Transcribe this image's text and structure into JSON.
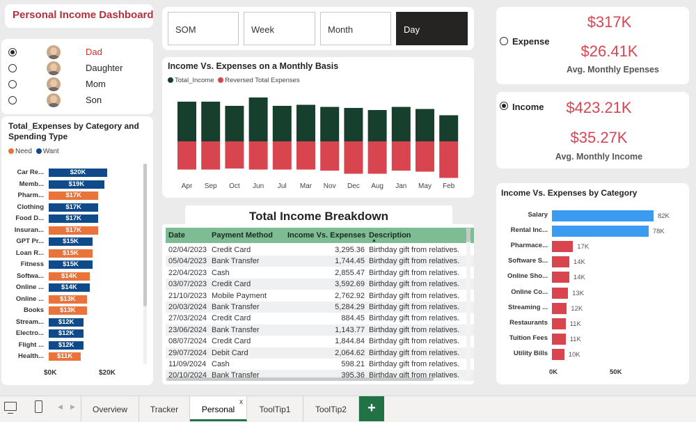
{
  "app": {
    "title": "Personal Income Dashboard"
  },
  "members": [
    {
      "label": "Dad",
      "selected": true
    },
    {
      "label": "Daughter",
      "selected": false
    },
    {
      "label": "Mom",
      "selected": false
    },
    {
      "label": "Son",
      "selected": false
    }
  ],
  "spend_chart": {
    "title_line1": "Total_Expenses by Category and",
    "title_line2": "Spending Type",
    "legend_need": "Need",
    "legend_want": "Want",
    "colors": {
      "need": "#e8743b",
      "want": "#0f4a8a"
    },
    "axis_ticks": [
      "$0K",
      "$20K"
    ]
  },
  "periods": [
    "SOM",
    "Week",
    "Month",
    "Day"
  ],
  "active_period": "Day",
  "monthly": {
    "title": "Income Vs. Expenses on a Monthly Basis",
    "legend_income": "Total_Income",
    "legend_expense": "Reversed Total Expenses",
    "colors": {
      "income": "#173f2d",
      "expense": "#d9454f"
    }
  },
  "breakdown": {
    "title": "Total Income Breakdown",
    "headers": [
      "Date",
      "Payment Method",
      "Income Vs. Expenses",
      "Description"
    ],
    "rows": [
      [
        "02/04/2023",
        "Credit Card",
        "3,295.36",
        "Birthday gift from relatives."
      ],
      [
        "05/04/2023",
        "Bank Transfer",
        "1,744.45",
        "Birthday gift from relatives."
      ],
      [
        "22/04/2023",
        "Cash",
        "2,855.47",
        "Birthday gift from relatives."
      ],
      [
        "03/07/2023",
        "Credit Card",
        "3,592.69",
        "Birthday gift from relatives."
      ],
      [
        "21/10/2023",
        "Mobile Payment",
        "2,762.92",
        "Birthday gift from relatives."
      ],
      [
        "20/03/2024",
        "Bank Transfer",
        "5,284.29",
        "Birthday gift from relatives."
      ],
      [
        "27/03/2024",
        "Credit Card",
        "884.45",
        "Birthday gift from relatives."
      ],
      [
        "23/06/2024",
        "Bank Transfer",
        "1,143.77",
        "Birthday gift from relatives."
      ],
      [
        "08/07/2024",
        "Credit Card",
        "1,844.84",
        "Birthday gift from relatives."
      ],
      [
        "29/07/2024",
        "Debit Card",
        "2,064.62",
        "Birthday gift from relatives."
      ],
      [
        "11/09/2024",
        "Cash",
        "598.21",
        "Birthday gift from relatives."
      ],
      [
        "20/10/2024",
        "Bank Transfer",
        "395.36",
        "Birthday gift from relatives."
      ]
    ]
  },
  "kpi": {
    "expense_label": "Expense",
    "expense_total": "$317K",
    "expense_avg": "$26.41K",
    "expense_avg_label": "Avg. Monthly Epenses",
    "income_label": "Income",
    "income_total": "$423.21K",
    "income_avg": "$35.27K",
    "income_avg_label": "Avg. Monthly Income",
    "expense_selected": false,
    "income_selected": true
  },
  "category_chart": {
    "title": "Income Vs. Expenses by Category",
    "colors": {
      "income": "#3a9bf0",
      "expense": "#d9454f"
    },
    "axis_ticks": [
      "0K",
      "50K"
    ]
  },
  "tabs": {
    "items": [
      "Overview",
      "Tracker",
      "Personal",
      "ToolTip1",
      "ToolTip2"
    ],
    "active": "Personal",
    "close_glyph": "x",
    "add_glyph": "+"
  },
  "chart_data": [
    {
      "type": "bar",
      "orientation": "horizontal",
      "title": "Total_Expenses by Category and Spending Type",
      "categories": [
        "Car Re...",
        "Memb...",
        "Pharm...",
        "Clothing",
        "Food D...",
        "Insuran...",
        "GPT Pr...",
        "Loan R...",
        "Fitness",
        "Softwa...",
        "Online ...",
        "Online ...",
        "Books",
        "Stream...",
        "Electro...",
        "Flight ...",
        "Health..."
      ],
      "values": [
        20,
        19,
        17,
        17,
        17,
        17,
        15,
        15,
        15,
        14,
        14,
        13,
        13,
        12,
        12,
        12,
        11
      ],
      "value_labels": [
        "$20K",
        "$19K",
        "$17K",
        "$17K",
        "$17K",
        "$17K",
        "$15K",
        "$15K",
        "$15K",
        "$14K",
        "$14K",
        "$13K",
        "$13K",
        "$12K",
        "$12K",
        "$12K",
        "$11K"
      ],
      "spending_type": [
        "Want",
        "Want",
        "Need",
        "Want",
        "Want",
        "Need",
        "Want",
        "Need",
        "Want",
        "Need",
        "Want",
        "Need",
        "Need",
        "Want",
        "Want",
        "Want",
        "Need"
      ],
      "legend": [
        "Need",
        "Want"
      ],
      "xlim": [
        0,
        25
      ]
    },
    {
      "type": "bar",
      "title": "Income Vs. Expenses on a Monthly Basis",
      "categories": [
        "Apr",
        "Sep",
        "Oct",
        "Jun",
        "Jul",
        "Mar",
        "Nov",
        "Dec",
        "Aug",
        "Jan",
        "May",
        "Feb"
      ],
      "series": [
        {
          "name": "Total_Income",
          "values": [
            38,
            38,
            34,
            42,
            34,
            35,
            33,
            32,
            30,
            33,
            31,
            25
          ]
        },
        {
          "name": "Reversed Total Expenses",
          "values": [
            -27,
            -27,
            -26,
            -27,
            -27,
            -27,
            -28,
            -31,
            -31,
            -28,
            -29,
            -35
          ]
        }
      ],
      "legend_position": "top-left"
    },
    {
      "type": "bar",
      "orientation": "horizontal",
      "title": "Income Vs. Expenses by Category",
      "categories": [
        "Salary",
        "Rental Inc...",
        "Pharmace...",
        "Software S...",
        "Online Sho...",
        "Online Co...",
        "Streaming ...",
        "Restaurants",
        "Tuition Fees",
        "Utility Bills"
      ],
      "values": [
        82,
        78,
        17,
        14,
        14,
        13,
        12,
        11,
        11,
        10
      ],
      "value_labels": [
        "82K",
        "78K",
        "17K",
        "14K",
        "14K",
        "13K",
        "12K",
        "11K",
        "11K",
        "10K"
      ],
      "kind": [
        "Income",
        "Income",
        "Expense",
        "Expense",
        "Expense",
        "Expense",
        "Expense",
        "Expense",
        "Expense",
        "Expense"
      ],
      "xlim": [
        0,
        90
      ]
    }
  ]
}
